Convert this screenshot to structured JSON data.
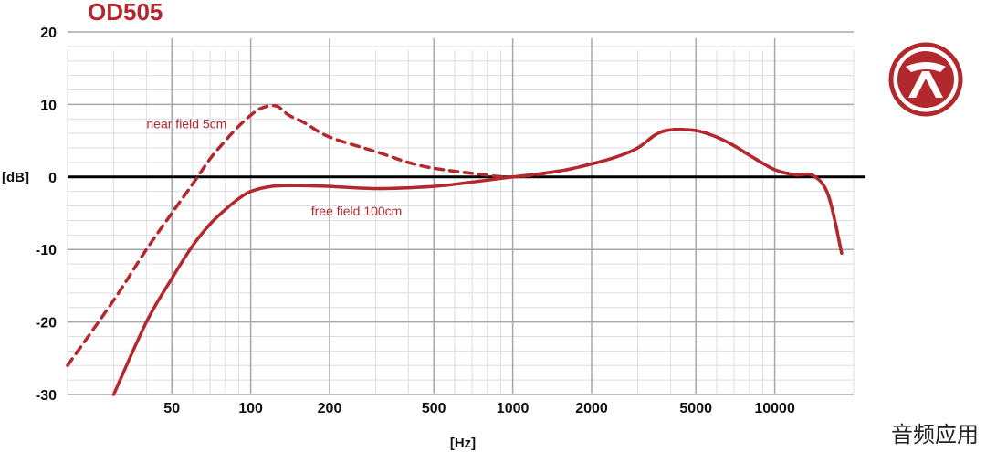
{
  "watermark": "音频应用",
  "chart_data": {
    "type": "line",
    "title": "OD505",
    "xlabel": "[Hz]",
    "ylabel": "[dB]",
    "x_scale": "log",
    "xlim": [
      20,
      20000
    ],
    "ylim": [
      -30,
      20
    ],
    "x_ticks": [
      50,
      100,
      200,
      500,
      1000,
      2000,
      5000,
      10000
    ],
    "x_tick_labels": [
      "50",
      "100",
      "200",
      "500",
      "1000",
      "2000",
      "5000",
      "10000"
    ],
    "y_ticks": [
      20,
      10,
      0,
      -10,
      -20,
      -30
    ],
    "y_tick_labels": [
      "20",
      "10",
      "0",
      "-10",
      "-20",
      "-30"
    ],
    "grid": true,
    "colors": {
      "curve": "#b3282d",
      "zero_line": "#000000",
      "grid_major": "#a8a8a8",
      "grid_minor": "#dedede"
    },
    "series": [
      {
        "name": "near field 5cm",
        "style": "dashed",
        "x": [
          20,
          30,
          40,
          50,
          60,
          70,
          80,
          90,
          100,
          110,
          125,
          140,
          160,
          200,
          300,
          400,
          500,
          700,
          1000,
          1500,
          2000,
          2500,
          3000,
          3500,
          4000,
          5000,
          6000,
          7000,
          8000,
          10000,
          12000,
          14000,
          16000,
          18000
        ],
        "y": [
          -26,
          -17,
          -10,
          -5,
          -1,
          2.5,
          5,
          7,
          8.5,
          9.5,
          9.8,
          8.5,
          7.5,
          5.5,
          3.5,
          2,
          1.2,
          0.5,
          0,
          0.8,
          1.8,
          2.8,
          4,
          5.8,
          6.5,
          6.4,
          5.5,
          4.3,
          3,
          1,
          0.3,
          0.2,
          -2.5,
          -10.5
        ]
      },
      {
        "name": "free field 100cm",
        "style": "solid",
        "x": [
          30,
          40,
          50,
          60,
          70,
          80,
          90,
          100,
          120,
          150,
          200,
          300,
          500,
          700,
          1000,
          1500,
          2000,
          2500,
          3000,
          3500,
          4000,
          5000,
          6000,
          7000,
          8000,
          10000,
          12000,
          14000,
          16000,
          18000
        ],
        "y": [
          -30,
          -20,
          -14,
          -9.5,
          -6.5,
          -4.5,
          -3,
          -2,
          -1.3,
          -1.2,
          -1.3,
          -1.6,
          -1.3,
          -0.7,
          0,
          0.8,
          1.8,
          2.8,
          4,
          5.8,
          6.5,
          6.4,
          5.5,
          4.3,
          3,
          1,
          0.3,
          0.2,
          -2.5,
          -10.5
        ]
      }
    ],
    "annotations": [
      {
        "text": "near field 5cm",
        "x": 40,
        "y": 6.7
      },
      {
        "text": "free field 100cm",
        "x": 170,
        "y": -5.3
      }
    ]
  }
}
